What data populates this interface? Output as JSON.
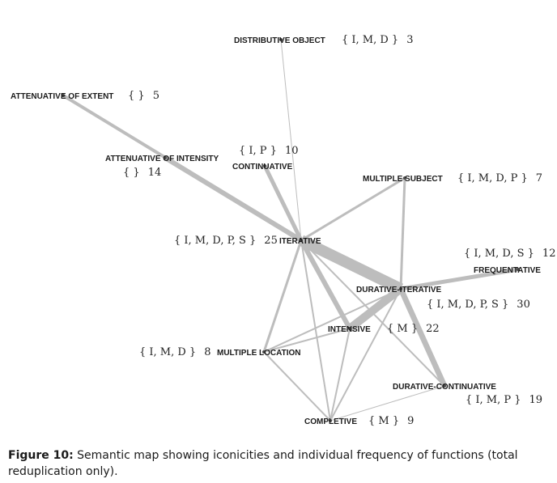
{
  "diagram": {
    "nodes": [
      {
        "id": "distributive_object",
        "label": "DISTRIBUTIVE OBJECT",
        "set": "{ I, M, D }",
        "freq": "3"
      },
      {
        "id": "attenuative_extent",
        "label": "ATTENUATIVE OF EXTENT",
        "set": "{ }",
        "freq": "5"
      },
      {
        "id": "attenuative_intensity",
        "label": "ATTENUATIVE OF INTENSITY",
        "set": "{ }",
        "freq": "14"
      },
      {
        "id": "continuative",
        "label": "CONTINUATIVE",
        "set": "{ I, P }",
        "freq": "10"
      },
      {
        "id": "multiple_subject",
        "label": "MULTIPLE SUBJECT",
        "set": "{ I, M, D, P }",
        "freq": "7"
      },
      {
        "id": "iterative",
        "label": "ITERATIVE",
        "set": "{ I, M, D, P, S }",
        "freq": "25"
      },
      {
        "id": "frequentative",
        "label": "FREQUENTATIVE",
        "set": "{ I, M, D, S }",
        "freq": "12"
      },
      {
        "id": "durative_iterative",
        "label": "DURATIVE-ITERATIVE",
        "set": "{ I, M, D, P, S }",
        "freq": "30"
      },
      {
        "id": "intensive",
        "label": "INTENSIVE",
        "set": "{ M }",
        "freq": "22"
      },
      {
        "id": "multiple_location",
        "label": "MULTIPLE LOCATION",
        "set": "{ I, M, D }",
        "freq": "8"
      },
      {
        "id": "durative_continuative",
        "label": "DURATIVE-CONTINUATIVE",
        "set": "{ I, M, P }",
        "freq": "19"
      },
      {
        "id": "completive",
        "label": "COMPLETIVE",
        "set": "{ M }",
        "freq": "9"
      }
    ],
    "edges": [
      {
        "from": "iterative",
        "to": "durative_iterative",
        "weight": 14
      },
      {
        "from": "iterative",
        "to": "attenuative_extent",
        "weight": 4
      },
      {
        "from": "iterative",
        "to": "attenuative_intensity",
        "weight": 6
      },
      {
        "from": "iterative",
        "to": "continuative",
        "weight": 5
      },
      {
        "from": "iterative",
        "to": "distributive_object",
        "weight": 1
      },
      {
        "from": "iterative",
        "to": "multiple_subject",
        "weight": 3
      },
      {
        "from": "iterative",
        "to": "intensive",
        "weight": 6
      },
      {
        "from": "iterative",
        "to": "multiple_location",
        "weight": 3
      },
      {
        "from": "iterative",
        "to": "completive",
        "weight": 2
      },
      {
        "from": "iterative",
        "to": "durative_continuative",
        "weight": 2
      },
      {
        "from": "durative_iterative",
        "to": "intensive",
        "weight": 10
      },
      {
        "from": "durative_iterative",
        "to": "frequentative",
        "weight": 5
      },
      {
        "from": "durative_iterative",
        "to": "durative_continuative",
        "weight": 7
      },
      {
        "from": "durative_iterative",
        "to": "multiple_subject",
        "weight": 3
      },
      {
        "from": "durative_iterative",
        "to": "multiple_location",
        "weight": 2
      },
      {
        "from": "durative_iterative",
        "to": "completive",
        "weight": 2
      },
      {
        "from": "intensive",
        "to": "multiple_location",
        "weight": 2
      },
      {
        "from": "intensive",
        "to": "completive",
        "weight": 2
      },
      {
        "from": "multiple_location",
        "to": "completive",
        "weight": 2
      },
      {
        "from": "completive",
        "to": "durative_continuative",
        "weight": 1
      }
    ]
  },
  "caption": {
    "label": "Figure 10:",
    "text": " Semantic map showing iconicities and individual frequency of functions (total reduplication only)."
  }
}
